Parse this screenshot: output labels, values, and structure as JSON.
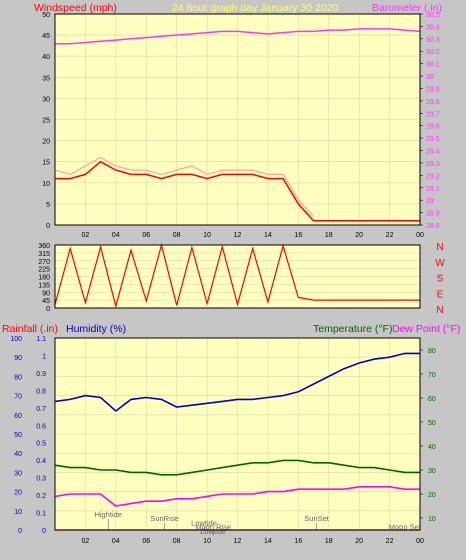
{
  "colors": {
    "background": "#c6c6c6",
    "plot_bg": "#ffffc0",
    "grid": "#d8d8a8",
    "windspeed": "#ff0000",
    "barometer": "#ff33ff",
    "title": "#ffff66",
    "rain": "#ff0000",
    "humidity": "#0000cc",
    "temperature": "#006600",
    "dewpoint": "#ff00ff",
    "events": "#666666"
  },
  "header": {
    "windspeed_label": "Windspeed (mph)",
    "title": "24 hour graph day   January 30 2020",
    "barometer_label": "Barometer (.in)"
  },
  "lower_header": {
    "rainfall_label": "Rainfall (.in)",
    "humidity_label": "Humidity (%)",
    "temperature_label": "Temperature (°F)",
    "dewpoint_label": "Dew Point (°F)"
  },
  "chart_data": [
    {
      "type": "line",
      "name": "wind-speed-and-barometer",
      "x_ticks": [
        "02",
        "04",
        "06",
        "08",
        "10",
        "12",
        "14",
        "16",
        "18",
        "20",
        "22",
        "00"
      ],
      "x_range": [
        0,
        24
      ],
      "y_left": {
        "ticks": [
          "0",
          "5",
          "10",
          "15",
          "20",
          "25",
          "30",
          "35",
          "40",
          "45",
          "50"
        ],
        "range": [
          0,
          50
        ],
        "label": "Windspeed (mph)"
      },
      "y_right": {
        "ticks": [
          "28.8",
          "28.9",
          "29",
          "29.1",
          "29.2",
          "29.3",
          "29.4",
          "29.5",
          "29.6",
          "29.7",
          "29.8",
          "29.9",
          "30",
          "30.1",
          "30.2",
          "30.3",
          "30.4",
          "30.5"
        ],
        "range": [
          28.8,
          30.5
        ],
        "label": "Barometer (.in)"
      },
      "series": [
        {
          "name": "Windspeed (mph)",
          "color": "#ff0000",
          "x": [
            0,
            1,
            2,
            3,
            4,
            5,
            6,
            7,
            8,
            9,
            10,
            11,
            12,
            13,
            14,
            15,
            16,
            17,
            18,
            19,
            20,
            21,
            22,
            23,
            24
          ],
          "y": [
            11,
            11,
            12,
            15,
            13,
            12,
            12,
            11,
            12,
            12,
            11,
            12,
            12,
            12,
            11,
            11,
            5,
            1,
            1,
            1,
            1,
            1,
            1,
            1,
            1
          ]
        },
        {
          "name": "Wind gust",
          "color": "#ffa0a0",
          "x": [
            0,
            1,
            2,
            3,
            4,
            5,
            6,
            7,
            8,
            9,
            10,
            11,
            12,
            13,
            14,
            15,
            16,
            17
          ],
          "y": [
            13,
            12,
            14,
            16,
            14,
            13,
            13,
            12,
            13,
            14,
            12,
            13,
            13,
            13,
            12,
            12,
            6,
            2
          ]
        },
        {
          "name": "Barometer (.in)",
          "color": "#ff33ff",
          "x": [
            0,
            1,
            2,
            3,
            4,
            5,
            6,
            7,
            8,
            9,
            10,
            11,
            12,
            13,
            14,
            15,
            16,
            17,
            18,
            19,
            20,
            21,
            22,
            23,
            24
          ],
          "y": [
            30.26,
            30.26,
            30.27,
            30.28,
            30.29,
            30.3,
            30.31,
            30.32,
            30.33,
            30.34,
            30.35,
            30.36,
            30.36,
            30.35,
            30.34,
            30.35,
            30.36,
            30.36,
            30.37,
            30.37,
            30.38,
            30.38,
            30.38,
            30.37,
            30.36
          ]
        }
      ]
    },
    {
      "type": "line",
      "name": "wind-direction",
      "x_range": [
        0,
        24
      ],
      "y_left": {
        "ticks": [
          "0",
          "45",
          "90",
          "135",
          "180",
          "225",
          "270",
          "315",
          "360"
        ],
        "range": [
          0,
          360
        ]
      },
      "y_right_labels": [
        "N",
        "W",
        "S",
        "E",
        "N"
      ],
      "series": [
        {
          "name": "Wind direction",
          "color": "#ff0000",
          "x": [
            0,
            1,
            2,
            3,
            4,
            5,
            6,
            7,
            8,
            9,
            10,
            11,
            12,
            13,
            14,
            15,
            16,
            17,
            18,
            19,
            20,
            21,
            22,
            23,
            24
          ],
          "y": [
            20,
            340,
            30,
            350,
            10,
            330,
            40,
            360,
            15,
            345,
            25,
            350,
            20,
            340,
            35,
            355,
            60,
            45,
            45,
            45,
            45,
            45,
            45,
            45,
            45
          ]
        }
      ]
    },
    {
      "type": "line",
      "name": "humidity-temperature-rain",
      "x_ticks": [
        "02",
        "04",
        "06",
        "08",
        "10",
        "12",
        "14",
        "16",
        "18",
        "20",
        "22",
        "00"
      ],
      "x_range": [
        0,
        24
      ],
      "y_rain": {
        "ticks": [
          "0",
          "0.1",
          "0.2",
          "0.3",
          "0.4",
          "0.5",
          "0.6",
          "0.7",
          "0.8",
          "0.9",
          "1",
          "1.1"
        ],
        "range": [
          0,
          1.1
        ],
        "label": "Rainfall (.in)"
      },
      "y_humidity": {
        "ticks": [
          "0",
          "10",
          "20",
          "30",
          "40",
          "50",
          "60",
          "70",
          "80",
          "90",
          "100"
        ],
        "range": [
          0,
          100
        ],
        "label": "Humidity (%)"
      },
      "y_temp": {
        "ticks": [
          "10",
          "20",
          "30",
          "40",
          "50",
          "60",
          "70",
          "80"
        ],
        "range": [
          5,
          85
        ],
        "label": "Temperature (°F)"
      },
      "series": [
        {
          "name": "Humidity (%)",
          "color": "#0000cc",
          "x": [
            0,
            1,
            2,
            3,
            4,
            5,
            6,
            7,
            8,
            9,
            10,
            11,
            12,
            13,
            14,
            15,
            16,
            17,
            18,
            19,
            20,
            21,
            22,
            23,
            24
          ],
          "y": [
            67,
            68,
            70,
            69,
            62,
            68,
            69,
            68,
            64,
            65,
            66,
            67,
            68,
            68,
            69,
            70,
            72,
            76,
            80,
            84,
            87,
            89,
            90,
            92,
            92
          ]
        },
        {
          "name": "Temperature (°F)",
          "color": "#006600",
          "x": [
            0,
            1,
            2,
            3,
            4,
            5,
            6,
            7,
            8,
            9,
            10,
            11,
            12,
            13,
            14,
            15,
            16,
            17,
            18,
            19,
            20,
            21,
            22,
            23,
            24
          ],
          "y": [
            32,
            31,
            31,
            30,
            30,
            29,
            29,
            28,
            28,
            29,
            30,
            31,
            32,
            33,
            33,
            34,
            34,
            33,
            33,
            32,
            31,
            31,
            30,
            29,
            29
          ]
        },
        {
          "name": "Dew Point (°F)",
          "color": "#ff00ff",
          "x": [
            0,
            1,
            2,
            3,
            4,
            5,
            6,
            7,
            8,
            9,
            10,
            11,
            12,
            13,
            14,
            15,
            16,
            17,
            18,
            19,
            20,
            21,
            22,
            23,
            24
          ],
          "y": [
            19,
            20,
            20,
            20,
            15,
            16,
            17,
            17,
            18,
            18,
            19,
            20,
            20,
            20,
            21,
            21,
            22,
            22,
            22,
            22,
            23,
            23,
            23,
            22,
            22
          ]
        },
        {
          "name": "Rainfall (.in)",
          "color": "#ff0000",
          "x": [
            0,
            24
          ],
          "y": [
            0,
            0
          ]
        }
      ],
      "events": [
        {
          "label": "Hightide",
          "x": 3.5,
          "row": 0
        },
        {
          "label": "SunRise",
          "x": 7.2,
          "row": 1
        },
        {
          "label": "Lowtide",
          "x": 9.8,
          "row": 2
        },
        {
          "label": "Moon Rise",
          "x": 10.4,
          "row": 3
        },
        {
          "label": "Lowtide",
          "x": 10.4,
          "row": 4
        },
        {
          "label": "SunSet",
          "x": 17.2,
          "row": 1
        },
        {
          "label": "Moon Set",
          "x": 23.0,
          "row": 3
        }
      ]
    }
  ]
}
